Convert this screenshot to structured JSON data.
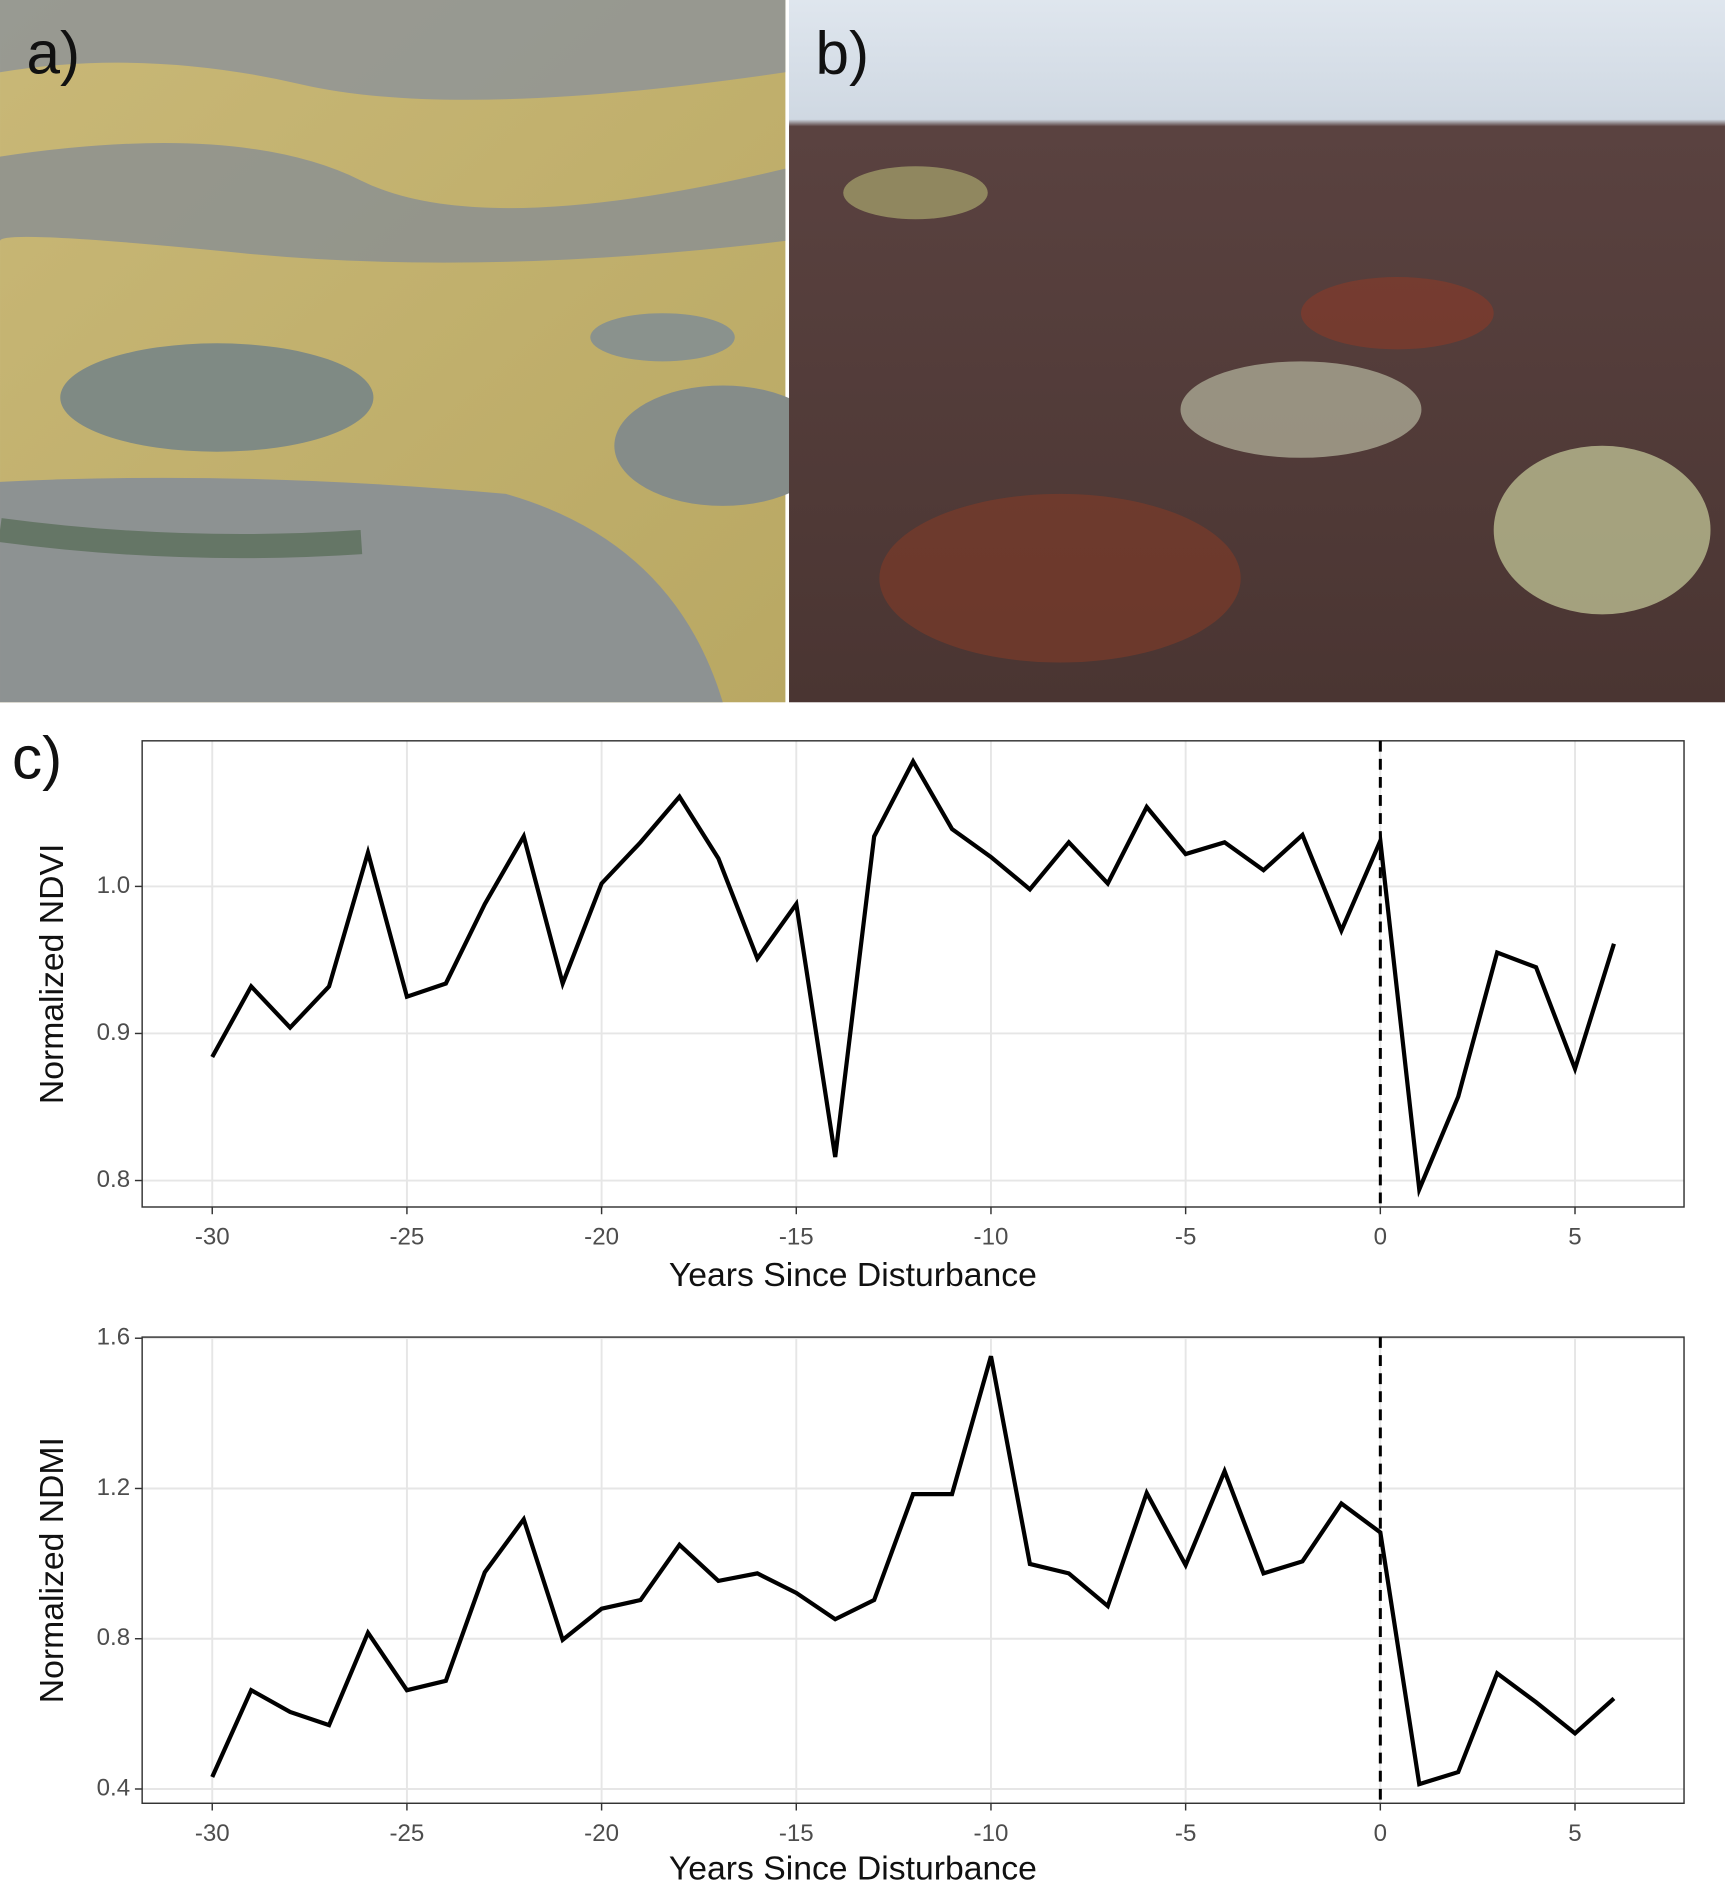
{
  "panel_labels": [
    "a)",
    "b)",
    "c)"
  ],
  "chart_data": [
    {
      "type": "line",
      "xlabel": "Years Since Disturbance",
      "ylabel": "Normalized NDVI",
      "x": [
        -30,
        -29,
        -28,
        -27,
        -26,
        -25,
        -24,
        -23,
        -22,
        -21,
        -20,
        -19,
        -18,
        -17,
        -16,
        -15,
        -14,
        -13,
        -12,
        -11,
        -10,
        -9,
        -8,
        -7,
        -6,
        -5,
        -4,
        -3,
        -2,
        -1,
        0,
        1,
        2,
        3,
        4,
        5,
        6
      ],
      "values": [
        0.884,
        0.932,
        0.904,
        0.932,
        1.023,
        0.925,
        0.934,
        0.988,
        1.034,
        0.934,
        1.002,
        1.03,
        1.061,
        1.019,
        0.951,
        0.988,
        0.816,
        1.034,
        1.085,
        1.039,
        1.02,
        0.998,
        1.03,
        1.002,
        1.054,
        1.022,
        1.03,
        1.011,
        1.035,
        0.97,
        1.031,
        0.794,
        0.857,
        0.955,
        0.945,
        0.876,
        0.961
      ],
      "color": "#000000",
      "xlim": [
        -31.8,
        7.8
      ],
      "ylim": [
        0.782,
        1.099
      ],
      "xticks": [
        -30,
        -25,
        -20,
        -15,
        -10,
        -5,
        0,
        5
      ],
      "yticks": [
        0.8,
        0.9,
        {
          "value": 1,
          "label": "1.0"
        }
      ],
      "vline": 0,
      "grid": true
    },
    {
      "type": "line",
      "xlabel": "Years Since Disturbance",
      "ylabel": "Normalized NDMI",
      "x": [
        -30,
        -29,
        -28,
        -27,
        -26,
        -25,
        -24,
        -23,
        -22,
        -21,
        -20,
        -19,
        -18,
        -17,
        -16,
        -15,
        -14,
        -13,
        -12,
        -11,
        -10,
        -9,
        -8,
        -7,
        -6,
        -5,
        -4,
        -3,
        -2,
        -1,
        0,
        1,
        2,
        3,
        4,
        5,
        6
      ],
      "values": [
        0.432,
        0.663,
        0.605,
        0.57,
        0.816,
        0.663,
        0.688,
        0.977,
        1.118,
        0.797,
        0.88,
        0.903,
        1.05,
        0.954,
        0.974,
        0.922,
        0.852,
        0.903,
        1.185,
        1.185,
        1.552,
        0.999,
        0.974,
        0.887,
        1.188,
        0.996,
        1.246,
        0.974,
        1.006,
        1.16,
        1.083,
        0.413,
        0.445,
        0.708,
        0.631,
        0.548,
        0.641
      ],
      "color": "#000000",
      "xlim": [
        -31.8,
        7.8
      ],
      "ylim": [
        0.362,
        1.603
      ],
      "xticks": [
        -30,
        -25,
        -20,
        -15,
        -10,
        -5,
        0,
        5
      ],
      "yticks": [
        0.4,
        0.8,
        1.2,
        1.6
      ],
      "vline": 0,
      "grid": true
    }
  ]
}
